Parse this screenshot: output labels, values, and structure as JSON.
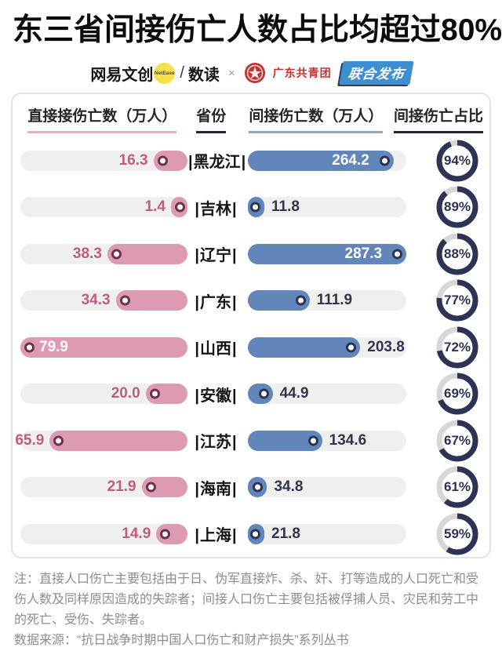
{
  "title": "东三省间接伤亡人数占比均超过80%",
  "credits": {
    "brand_left": "网易文创",
    "netease_badge": "NetEase",
    "slash": "/",
    "brand_shudu": "数读",
    "x_separator": "×",
    "gd_league": "广东共青团",
    "release_badge": "联合发布",
    "emblem_icon": "communist-youth-league-emblem",
    "badge_color": "#3e8fd2",
    "gd_red": "#c5322e",
    "netease_yellow": "#f3e24b"
  },
  "table": {
    "headers": [
      "直接接伤亡数（万人）",
      "省份",
      "间接伤亡数（万人）",
      "间接伤亡占比"
    ],
    "header_underline_colors": [
      "#f0aabc",
      "#20263f",
      "#8ea8cd",
      "#20263f"
    ]
  },
  "chart_data": {
    "type": "bar",
    "title": "东三省间接伤亡人数占比均超过80%",
    "categories": [
      "黑龙江",
      "吉林",
      "辽宁",
      "广东",
      "山西",
      "安徽",
      "江苏",
      "海南",
      "上海"
    ],
    "series": [
      {
        "name": "直接接伤亡数（万人）",
        "values": [
          16.3,
          1.4,
          38.3,
          34.3,
          79.9,
          20.0,
          65.9,
          21.9,
          14.9
        ]
      },
      {
        "name": "间接伤亡数（万人）",
        "values": [
          264.2,
          11.8,
          287.3,
          111.9,
          203.8,
          44.9,
          134.6,
          34.8,
          21.8
        ]
      },
      {
        "name": "间接伤亡占比",
        "values": [
          94,
          89,
          88,
          77,
          72,
          69,
          67,
          61,
          59
        ]
      }
    ],
    "direct_labels": [
      "16.3",
      "1.4",
      "38.3",
      "34.3",
      "79.9",
      "20.0",
      "65.9",
      "21.9",
      "14.9"
    ],
    "indirect_labels": [
      "264.2",
      "11.8",
      "287.3",
      "111.9",
      "203.8",
      "44.9",
      "134.6",
      "34.8",
      "21.8"
    ],
    "pct_labels": [
      "94%",
      "89%",
      "88%",
      "77%",
      "72%",
      "69%",
      "67%",
      "61%",
      "59%"
    ],
    "direct_label_inside": [
      false,
      false,
      false,
      false,
      true,
      false,
      false,
      false,
      false
    ],
    "indirect_label_inside": [
      true,
      false,
      true,
      false,
      false,
      false,
      false,
      false,
      false
    ],
    "axis_max_direct": 79.9,
    "axis_max_indirect": 287.3,
    "layout": {
      "direct_bars_grow": "right-to-left",
      "indirect_bars_grow": "left-to-right",
      "donut_start": "12-o-clock-clockwise"
    },
    "colors": {
      "direct_fill": "#dc9bb3",
      "indirect_fill": "#6285ba",
      "track": "#efefee",
      "direct_dot_ring": "#6e3150",
      "indirect_dot_ring": "#2d3355",
      "direct_label": "#c05c80",
      "dark_label": "#32344d",
      "ring_fill": "#2d3355",
      "ring_rest": "#d7d7d7"
    }
  },
  "notes": {
    "note": "注：直接人口伤亡主要包括由于日、伪军直接炸、杀、奸、打等造成的人口死亡和受伤人数及同样原因造成的失踪者；间接人口伤亡主要包括被俘捕人员、灾民和劳工中的死亡、受伤、失踪者。",
    "source": "数据来源：“抗日战争时期中国人口伤亡和财产损失”系列丛书"
  }
}
